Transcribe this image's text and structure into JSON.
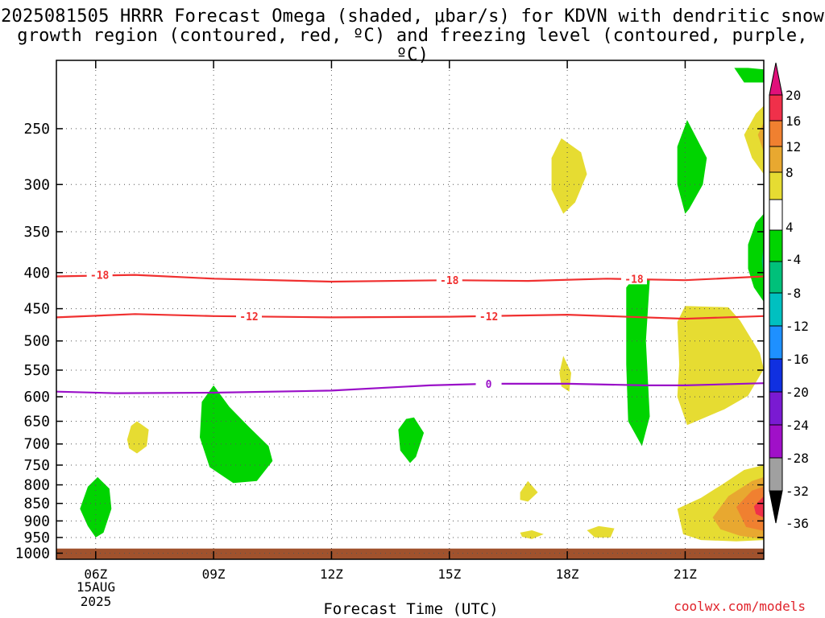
{
  "title_line1": "2025081505 HRRR Forecast Omega (shaded, μbar/s) for KDVN with dendritic snow",
  "title_line2": "growth region (contoured, red, ºC) and freezing level (contoured, purple, ºC)",
  "credit": "coolwx.com/models",
  "chart_data": {
    "type": "time-height cross section",
    "title": "2025081505 HRRR Forecast Omega (shaded, μbar/s) for KDVN with dendritic snow growth region (contoured, red, ºC) and freezing level (contoured, purple, ºC)",
    "xlabel": "Forecast Time (UTC)",
    "x_ticks": [
      "06Z",
      "09Z",
      "12Z",
      "15Z",
      "18Z",
      "21Z"
    ],
    "x_tick_hours": [
      6,
      9,
      12,
      15,
      18,
      21
    ],
    "x_date_label": [
      "15AUG",
      "2025"
    ],
    "xlim_hours": [
      5,
      23
    ],
    "y_axis_scale": "log-pressure, inverted",
    "y_ticks": [
      250,
      300,
      350,
      400,
      450,
      500,
      550,
      600,
      650,
      700,
      750,
      800,
      850,
      900,
      950,
      1000
    ],
    "ylim_hPa": [
      1020,
      200
    ],
    "grid": true,
    "grid_style": "dotted",
    "ground_color": "#a0522d",
    "ground_top_hPa": 985,
    "colorbar": {
      "labels": [
        "20",
        "16",
        "12",
        "8",
        "4",
        "-4",
        "-8",
        "-12",
        "-16",
        "-20",
        "-24",
        "-28",
        "-32",
        "-36"
      ],
      "bins": [
        {
          "lo": 16,
          "hi": 20,
          "color": "#f0304a"
        },
        {
          "lo": 12,
          "hi": 16,
          "color": "#f08030"
        },
        {
          "lo": 8,
          "hi": 12,
          "color": "#e8a830"
        },
        {
          "lo": 4,
          "hi": 8,
          "color": "#e6dc32"
        },
        {
          "lo": -4,
          "hi": 4,
          "color": "#ffffff"
        },
        {
          "lo": -8,
          "hi": -4,
          "color": "#00d400"
        },
        {
          "lo": -12,
          "hi": -8,
          "color": "#00c07a"
        },
        {
          "lo": -16,
          "hi": -12,
          "color": "#00c0c0"
        },
        {
          "lo": -20,
          "hi": -16,
          "color": "#1e90ff"
        },
        {
          "lo": -24,
          "hi": -20,
          "color": "#1030e0"
        },
        {
          "lo": -28,
          "hi": -24,
          "color": "#7a1ad2"
        },
        {
          "lo": -32,
          "hi": -28,
          "color": "#a010c8"
        },
        {
          "lo": -36,
          "hi": -32,
          "color": "#a0a0a0"
        }
      ],
      "top_extend_color": "#e0107a",
      "bottom_extend_color": "#000000"
    },
    "contours": [
      {
        "label": "-18",
        "color": "#f03030",
        "points": [
          [
            5,
            405
          ],
          [
            7,
            403
          ],
          [
            9,
            408
          ],
          [
            12,
            412
          ],
          [
            15,
            410
          ],
          [
            17,
            411
          ],
          [
            19,
            408
          ],
          [
            21,
            410
          ],
          [
            23,
            405
          ]
        ],
        "label_at": [
          [
            6.1,
            403
          ],
          [
            15,
            410
          ],
          [
            19.7,
            408
          ]
        ]
      },
      {
        "label": "-12",
        "color": "#f03030",
        "points": [
          [
            5,
            463
          ],
          [
            7,
            458
          ],
          [
            9,
            461
          ],
          [
            12,
            463
          ],
          [
            15,
            462
          ],
          [
            18,
            459
          ],
          [
            21,
            465
          ],
          [
            23,
            461
          ]
        ],
        "label_at": [
          [
            9.9,
            461
          ],
          [
            16,
            461
          ]
        ]
      },
      {
        "label": "0",
        "color": "#9a10c8",
        "points": [
          [
            5,
            590
          ],
          [
            6.5,
            593
          ],
          [
            9,
            592
          ],
          [
            12,
            588
          ],
          [
            14.5,
            578
          ],
          [
            16,
            575
          ],
          [
            18,
            575
          ],
          [
            20,
            578
          ],
          [
            21,
            578
          ],
          [
            23,
            574
          ]
        ],
        "label_at": [
          [
            16,
            575
          ]
        ]
      }
    ],
    "omega_regions": [
      {
        "color": "#00d400",
        "points": [
          [
            5.6,
            865
          ],
          [
            5.8,
            805
          ],
          [
            6.05,
            780
          ],
          [
            6.35,
            810
          ],
          [
            6.4,
            865
          ],
          [
            6.2,
            935
          ],
          [
            6.0,
            950
          ],
          [
            5.8,
            915
          ]
        ]
      },
      {
        "color": "#e6dc32",
        "points": [
          [
            6.8,
            690
          ],
          [
            6.9,
            660
          ],
          [
            7.05,
            650
          ],
          [
            7.35,
            668
          ],
          [
            7.3,
            705
          ],
          [
            7.05,
            722
          ],
          [
            6.85,
            710
          ]
        ]
      },
      {
        "color": "#00d400",
        "points": [
          [
            8.7,
            610
          ],
          [
            9.0,
            578
          ],
          [
            9.4,
            620
          ],
          [
            9.9,
            662
          ],
          [
            10.4,
            705
          ],
          [
            10.5,
            740
          ],
          [
            10.1,
            790
          ],
          [
            9.5,
            795
          ],
          [
            8.9,
            755
          ],
          [
            8.65,
            685
          ]
        ]
      },
      {
        "color": "#00d400",
        "points": [
          [
            13.7,
            668
          ],
          [
            13.9,
            645
          ],
          [
            14.1,
            642
          ],
          [
            14.35,
            675
          ],
          [
            14.15,
            730
          ],
          [
            14.0,
            745
          ],
          [
            13.75,
            715
          ]
        ]
      },
      {
        "color": "#e6dc32",
        "points": [
          [
            16.8,
            820
          ],
          [
            17.0,
            790
          ],
          [
            17.25,
            820
          ],
          [
            17.0,
            845
          ],
          [
            16.8,
            840
          ]
        ]
      },
      {
        "color": "#e6dc32",
        "points": [
          [
            16.8,
            935
          ],
          [
            17.1,
            928
          ],
          [
            17.4,
            940
          ],
          [
            17.1,
            955
          ],
          [
            16.85,
            948
          ]
        ]
      },
      {
        "color": "#e6dc32",
        "points": [
          [
            18.5,
            928
          ],
          [
            18.8,
            915
          ],
          [
            19.2,
            922
          ],
          [
            19.1,
            950
          ],
          [
            18.7,
            950
          ]
        ]
      },
      {
        "color": "#e6dc32",
        "points": [
          [
            17.8,
            555
          ],
          [
            17.9,
            525
          ],
          [
            18.1,
            555
          ],
          [
            18.05,
            590
          ],
          [
            17.85,
            580
          ]
        ]
      },
      {
        "color": "#e6dc32",
        "points": [
          [
            17.6,
            275
          ],
          [
            17.85,
            258
          ],
          [
            18.35,
            270
          ],
          [
            18.5,
            290
          ],
          [
            18.2,
            318
          ],
          [
            17.9,
            330
          ],
          [
            17.6,
            305
          ]
        ]
      },
      {
        "color": "#00d400",
        "points": [
          [
            19.5,
            420
          ],
          [
            19.8,
            400
          ],
          [
            20.1,
            410
          ],
          [
            20.0,
            500
          ],
          [
            20.1,
            640
          ],
          [
            19.9,
            705
          ],
          [
            19.55,
            650
          ],
          [
            19.5,
            540
          ],
          [
            19.5,
            460
          ]
        ]
      },
      {
        "color": "#00d400",
        "points": [
          [
            20.8,
            265
          ],
          [
            21.05,
            243
          ],
          [
            21.55,
            275
          ],
          [
            21.45,
            300
          ],
          [
            21.1,
            325
          ],
          [
            21.0,
            330
          ],
          [
            20.8,
            300
          ]
        ]
      },
      {
        "color": "#e6dc32",
        "points": [
          [
            20.8,
            470
          ],
          [
            21.0,
            446
          ],
          [
            22.1,
            448
          ],
          [
            22.4,
            468
          ],
          [
            22.9,
            520
          ],
          [
            23,
            548
          ],
          [
            22.6,
            598
          ],
          [
            22.0,
            625
          ],
          [
            21.05,
            658
          ],
          [
            20.8,
            600
          ],
          [
            20.85,
            540
          ]
        ]
      },
      {
        "color": "#e6dc32",
        "points": [
          [
            20.8,
            865
          ],
          [
            21.4,
            835
          ],
          [
            22.0,
            795
          ],
          [
            22.5,
            762
          ],
          [
            23,
            750
          ],
          [
            23,
            958
          ],
          [
            22.3,
            962
          ],
          [
            21.4,
            958
          ],
          [
            20.95,
            940
          ]
        ]
      },
      {
        "color": "#e8a830",
        "points": [
          [
            21.7,
            890
          ],
          [
            22.1,
            830
          ],
          [
            22.7,
            790
          ],
          [
            23,
            780
          ],
          [
            23,
            955
          ],
          [
            22.4,
            945
          ],
          [
            21.9,
            925
          ]
        ]
      },
      {
        "color": "#f08030",
        "points": [
          [
            22.3,
            860
          ],
          [
            22.7,
            815
          ],
          [
            23,
            805
          ],
          [
            23,
            930
          ],
          [
            22.55,
            918
          ]
        ]
      },
      {
        "color": "#f0304a",
        "points": [
          [
            22.75,
            858
          ],
          [
            23,
            830
          ],
          [
            23,
            890
          ],
          [
            22.8,
            880
          ]
        ]
      },
      {
        "color": "#e6dc32",
        "points": [
          [
            22.5,
            255
          ],
          [
            22.8,
            238
          ],
          [
            23,
            232
          ],
          [
            23,
            290
          ],
          [
            22.7,
            275
          ]
        ]
      },
      {
        "color": "#e8a830",
        "points": [
          [
            22.85,
            255
          ],
          [
            23,
            245
          ],
          [
            23,
            270
          ]
        ]
      },
      {
        "color": "#00d400",
        "points": [
          [
            22.6,
            365
          ],
          [
            22.8,
            340
          ],
          [
            23,
            330
          ],
          [
            23,
            440
          ],
          [
            22.75,
            420
          ],
          [
            22.6,
            395
          ]
        ]
      },
      {
        "color": "#00c07a",
        "points": [
          [
            22.95,
            385
          ],
          [
            23,
            365
          ],
          [
            23,
            410
          ]
        ]
      },
      {
        "color": "#00d400",
        "points": [
          [
            22.25,
            205
          ],
          [
            22.6,
            205
          ],
          [
            23,
            206
          ],
          [
            23,
            215
          ],
          [
            22.5,
            215
          ]
        ]
      }
    ]
  }
}
